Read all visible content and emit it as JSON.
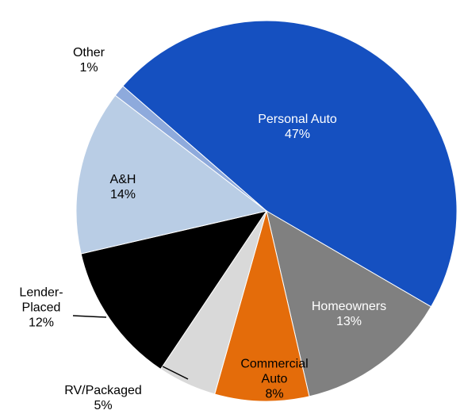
{
  "chart_data": {
    "type": "pie",
    "categories": [
      "Personal Auto",
      "Homeowners",
      "Commercial Auto",
      "RV/Packaged",
      "Lender-Placed",
      "A&H",
      "Other"
    ],
    "values": [
      47,
      13,
      8,
      5,
      12,
      14,
      1
    ],
    "value_labels": [
      "47%",
      "13%",
      "8%",
      "5%",
      "12%",
      "14%",
      "1%"
    ],
    "colors": [
      "#1550c0",
      "#808080",
      "#e46c0a",
      "#d9d9d9",
      "#000000",
      "#b9cde5",
      "#8eaadc"
    ]
  }
}
